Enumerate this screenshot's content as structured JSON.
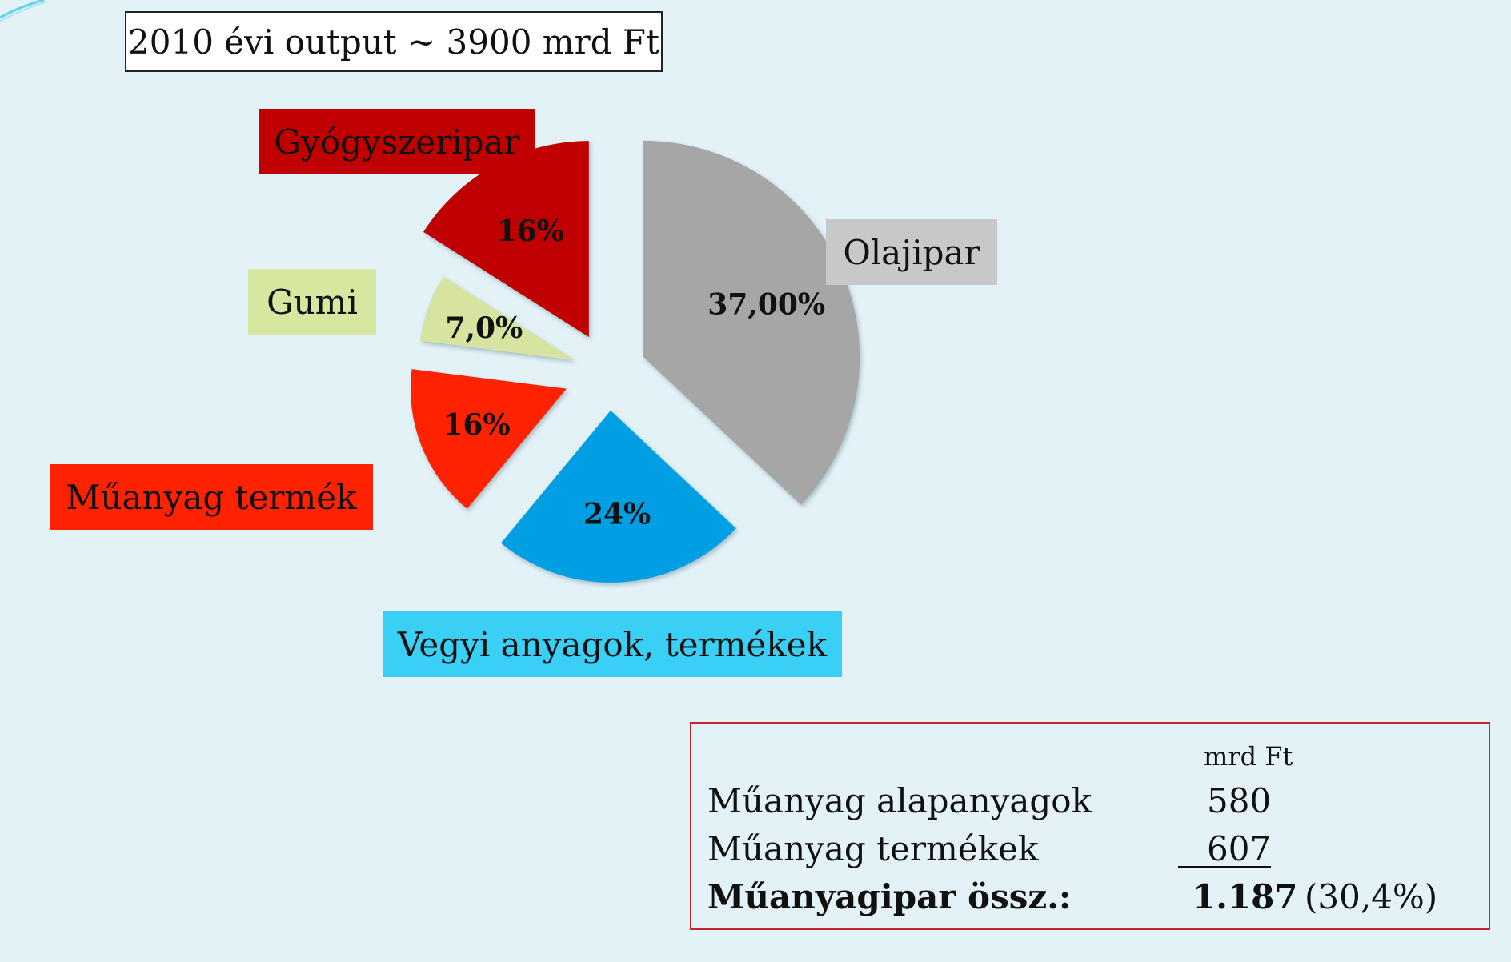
{
  "title": "2010 évi output ~ 3900 mrd Ft",
  "colors": {
    "background": "#e3f2f7",
    "olajipar": "#a6a6a6",
    "vegyi": "#009fe3",
    "muanyag_termek": "#ff2200",
    "gumi": "#d6e4a0",
    "gyogyszeripar": "#c00000"
  },
  "chart_data": {
    "type": "pie",
    "title": "2010 évi output ~ 3900 mrd Ft",
    "slices": [
      {
        "label": "Olajipar",
        "value": 37.0,
        "value_label": "37,00%",
        "color": "#a6a6a6",
        "label_bg": "#c8c8c8"
      },
      {
        "label": "Vegyi anyagok, termékek",
        "value": 24,
        "value_label": "24%",
        "color": "#009fe3",
        "label_bg": "#3ad0f5"
      },
      {
        "label": "Műanyag termék",
        "value": 16,
        "value_label": "16%",
        "color": "#ff2200",
        "label_bg": "#ff2200"
      },
      {
        "label": "Gumi",
        "value": 7.0,
        "value_label": "7,0%",
        "color": "#d6e4a0",
        "label_bg": "#d6e8a0"
      },
      {
        "label": "Gyógyszeripar",
        "value": 16,
        "value_label": "16%",
        "color": "#c00000",
        "label_bg": "#c00000"
      }
    ]
  },
  "summary": {
    "unit": "mrd Ft",
    "rows": [
      {
        "label": "Műanyag alapanyagok",
        "value": "580"
      },
      {
        "label": "Műanyag termékek",
        "value": "607"
      }
    ],
    "total": {
      "label": "Műanyagipar össz.:",
      "value": "1.187",
      "percent": "(30,4%)"
    }
  }
}
